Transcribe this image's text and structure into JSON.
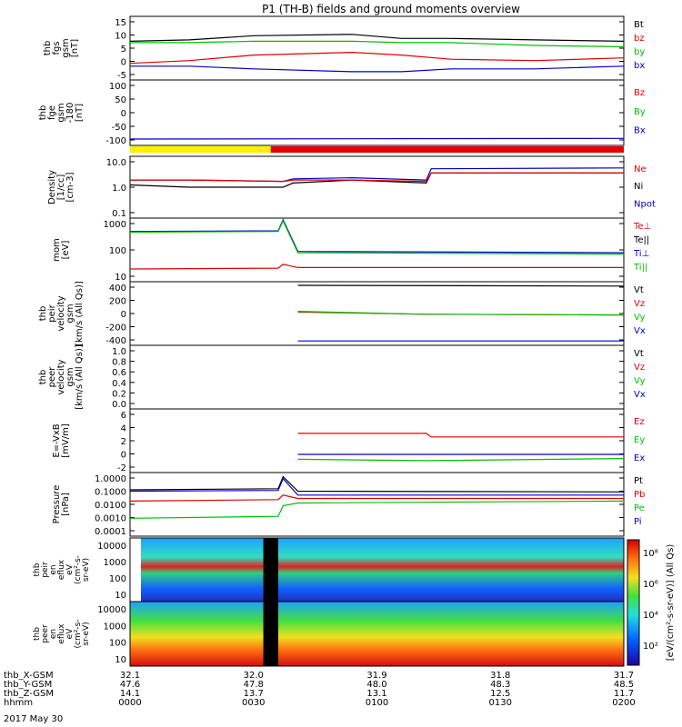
{
  "chart_data": {
    "type": "line",
    "title": "P1 (TH-B) fields and ground moments overview",
    "colors": {
      "black": "#000000",
      "red": "#e00000",
      "green": "#00c000",
      "blue": "#0000c8",
      "yellow": "#ffee00"
    },
    "panels": [
      {
        "ylabel": [
          "thb",
          "fgs",
          "gsm",
          "[nT]"
        ],
        "yticks": [
          "15",
          "10",
          "5",
          "0",
          "-5"
        ],
        "ylim": [
          -7,
          16
        ],
        "legend": [
          {
            "text": "Bt",
            "color": "black"
          },
          {
            "text": "bz",
            "color": "red"
          },
          {
            "text": "by",
            "color": "green"
          },
          {
            "text": "bx",
            "color": "blue"
          }
        ],
        "series": [
          {
            "name": "Bt",
            "color": "black",
            "t": [
              0,
              0.12,
              0.25,
              0.45,
              0.55,
              0.65,
              0.82,
              1
            ],
            "v": [
              7,
              7.5,
              9,
              9.5,
              8,
              8,
              7.5,
              7
            ]
          },
          {
            "name": "bz",
            "color": "red",
            "t": [
              0,
              0.12,
              0.25,
              0.45,
              0.55,
              0.65,
              0.82,
              1
            ],
            "v": [
              -1,
              0,
              2,
              3,
              2,
              0.5,
              0,
              1
            ]
          },
          {
            "name": "by",
            "color": "green",
            "t": [
              0,
              0.12,
              0.25,
              0.45,
              0.55,
              0.65,
              0.82,
              1
            ],
            "v": [
              6.5,
              6.5,
              7,
              7,
              6.5,
              6.5,
              5.5,
              5
            ]
          },
          {
            "name": "bx",
            "color": "blue",
            "t": [
              0,
              0.12,
              0.25,
              0.45,
              0.55,
              0.65,
              0.82,
              1
            ],
            "v": [
              -2,
              -2,
              -3,
              -4,
              -4,
              -3,
              -3,
              -2
            ]
          }
        ]
      },
      {
        "ylabel": [
          "thb",
          "fge",
          "gsm",
          "-180",
          "[nT]"
        ],
        "yticks": [
          "100",
          "50",
          "0",
          "-50",
          "-100"
        ],
        "ylim": [
          -130,
          105
        ],
        "legend": [
          {
            "text": "Bz",
            "color": "red"
          },
          {
            "text": "By",
            "color": "green"
          },
          {
            "text": "Bx",
            "color": "blue"
          }
        ],
        "series": [
          {
            "name": "Bx",
            "color": "blue",
            "t": [
              0,
              1
            ],
            "v": [
              -107,
              -105
            ]
          }
        ]
      },
      {
        "ylabel": [
          "Density",
          "[1/cc]",
          "[cm-3]"
        ],
        "yticks": [
          "10.0",
          "1.0",
          "0.1"
        ],
        "ylim": [
          0.1,
          40
        ],
        "log": true,
        "legend": [
          {
            "text": "Ne",
            "color": "red"
          },
          {
            "text": "Ni",
            "color": "black"
          },
          {
            "text": "Npot",
            "color": "blue"
          }
        ],
        "series": [
          {
            "name": "Ni",
            "color": "black",
            "t": [
              0,
              0.12,
              0.31,
              0.33,
              0.45,
              0.6,
              0.61,
              1
            ],
            "v": [
              2.5,
              2,
              2,
              3,
              4,
              3,
              8,
              8
            ]
          },
          {
            "name": "Npot",
            "color": "blue",
            "t": [
              0,
              0.12,
              0.31,
              0.33,
              0.45,
              0.6,
              0.61,
              1
            ],
            "v": [
              4,
              4,
              3.5,
              4.5,
              5,
              4,
              12,
              13
            ]
          },
          {
            "name": "Ne",
            "color": "red",
            "t": [
              0,
              0.12,
              0.31,
              0.33,
              0.45,
              0.6,
              0.61,
              1
            ],
            "v": [
              4,
              4,
              3.5,
              4,
              4,
              3.5,
              8,
              8
            ]
          }
        ]
      },
      {
        "ylabel": [
          "mom",
          "[eV]"
        ],
        "yticks": [
          "1000",
          "100",
          "10"
        ],
        "ylim": [
          3,
          3000
        ],
        "log": true,
        "legend": [
          {
            "text": "Te⊥",
            "color": "red"
          },
          {
            "text": "Te||",
            "color": "black"
          },
          {
            "text": "Ti⊥",
            "color": "blue"
          },
          {
            "text": "Ti||",
            "color": "green"
          }
        ],
        "series": [
          {
            "name": "Ti",
            "color": "blue",
            "t": [
              0,
              0.3,
              0.31,
              0.34,
              1
            ],
            "v": [
              700,
              750,
              2500,
              80,
              70
            ]
          },
          {
            "name": "Ti||",
            "color": "green",
            "t": [
              0,
              0.3,
              0.31,
              0.34,
              1
            ],
            "v": [
              650,
              700,
              2200,
              70,
              60
            ]
          },
          {
            "name": "Te",
            "color": "red",
            "t": [
              0,
              0.3,
              0.31,
              0.34,
              1
            ],
            "v": [
              12,
              13,
              20,
              14,
              14
            ]
          }
        ]
      },
      {
        "ylabel": [
          "thb",
          "peir",
          "velocity",
          "gsm",
          "[km/s (All Qs)]"
        ],
        "yticks": [
          "400",
          "200",
          "0",
          "-200",
          "-400"
        ],
        "ylim": [
          -440,
          440
        ],
        "legend": [
          {
            "text": "Vt",
            "color": "black"
          },
          {
            "text": "Vz",
            "color": "red"
          },
          {
            "text": "Vy",
            "color": "green"
          },
          {
            "text": "Vx",
            "color": "blue"
          }
        ],
        "series": [
          {
            "name": "Vt",
            "color": "black",
            "t": [
              0.34,
              1
            ],
            "v": [
              390,
              380
            ]
          },
          {
            "name": "Vz",
            "color": "red",
            "t": [
              0.34,
              0.6,
              1
            ],
            "v": [
              20,
              -10,
              -20
            ]
          },
          {
            "name": "Vy",
            "color": "green",
            "t": [
              0.34,
              0.6,
              1
            ],
            "v": [
              30,
              -10,
              -20
            ]
          },
          {
            "name": "Vx",
            "color": "blue",
            "t": [
              0.34,
              1
            ],
            "v": [
              -380,
              -380
            ]
          }
        ]
      },
      {
        "ylabel": [
          "thb",
          "peer",
          "velocity",
          "gsm",
          "[km/s (All Qs)]"
        ],
        "yticks": [
          "1.0",
          "0.8",
          "0.6",
          "0.4",
          "0.2",
          "0.0"
        ],
        "ylim": [
          0,
          1
        ],
        "legend": [
          {
            "text": "Vt",
            "color": "black"
          },
          {
            "text": "Vz",
            "color": "red"
          },
          {
            "text": "Vy",
            "color": "green"
          },
          {
            "text": "Vx",
            "color": "blue"
          }
        ],
        "series": []
      },
      {
        "ylabel": [
          "E=-VxB",
          "[mV/m]"
        ],
        "yticks": [
          "6",
          "4",
          "2",
          "0",
          "-2"
        ],
        "ylim": [
          -2.6,
          6.5
        ],
        "legend": [
          {
            "text": "Ez",
            "color": "red"
          },
          {
            "text": "Ey",
            "color": "green"
          },
          {
            "text": "Ex",
            "color": "blue"
          }
        ],
        "series": [
          {
            "name": "Ez",
            "color": "red",
            "t": [
              0.34,
              0.6,
              0.61,
              1
            ],
            "v": [
              3,
              3,
              2.5,
              2.5
            ]
          },
          {
            "name": "Ex",
            "color": "blue",
            "t": [
              0.34,
              1
            ],
            "v": [
              0,
              0
            ]
          },
          {
            "name": "Ey",
            "color": "green",
            "t": [
              0.34,
              0.6,
              1
            ],
            "v": [
              -0.7,
              -0.9,
              -0.6
            ]
          }
        ]
      },
      {
        "ylabel": [
          "Pressure",
          "[nPa]"
        ],
        "yticks": [
          "1.0000",
          "0.1000",
          "0.0100",
          "0.0010",
          "0.0001"
        ],
        "ylim": [
          0.0001,
          1.5
        ],
        "log": true,
        "legend": [
          {
            "text": "Pt",
            "color": "black"
          },
          {
            "text": "Pb",
            "color": "red"
          },
          {
            "text": "Pe",
            "color": "green"
          },
          {
            "text": "Pi",
            "color": "blue"
          }
        ],
        "series": [
          {
            "name": "Pt",
            "color": "black",
            "t": [
              0,
              0.3,
              0.31,
              0.34,
              1
            ],
            "v": [
              0.11,
              0.13,
              0.8,
              0.09,
              0.08
            ]
          },
          {
            "name": "Pb",
            "color": "red",
            "t": [
              0,
              0.3,
              0.31,
              0.34,
              1
            ],
            "v": [
              0.02,
              0.025,
              0.05,
              0.03,
              0.03
            ]
          },
          {
            "name": "Pi",
            "color": "blue",
            "t": [
              0,
              0.3,
              0.31,
              0.34,
              1
            ],
            "v": [
              0.09,
              0.1,
              0.6,
              0.05,
              0.05
            ]
          },
          {
            "name": "Pe",
            "color": "green",
            "t": [
              0,
              0.3,
              0.31,
              0.34,
              1
            ],
            "v": [
              0.0015,
              0.002,
              0.01,
              0.015,
              0.02
            ]
          }
        ]
      }
    ],
    "spectrograms": [
      {
        "ylabel": [
          "thb",
          "peir",
          "en",
          "eflux",
          "eV",
          "(cm²-s-",
          "sr-eV)"
        ],
        "yticks": [
          "10000",
          "1000",
          "100",
          "10"
        ]
      },
      {
        "ylabel": [
          "thb",
          "peer",
          "en",
          "eflux",
          "eV",
          "(cm²-s-",
          "sr-eV)"
        ],
        "yticks": [
          "10000",
          "1000",
          "100",
          "10"
        ]
      }
    ],
    "colorbar": {
      "ticks": [
        "10⁸",
        "10⁶",
        "10⁴",
        "10²"
      ],
      "label": "[eV/(cm²-s-sr-eV)] (All Qs)"
    },
    "xaxis": {
      "rows": [
        {
          "label": "thb_X-GSM",
          "values": [
            "32.1",
            "32.0",
            "31.9",
            "31.8",
            "31.7"
          ]
        },
        {
          "label": "thb_Y-GSM",
          "values": [
            "47.6",
            "47.8",
            "48.0",
            "48.3",
            "48.5"
          ]
        },
        {
          "label": "thb_Z-GSM",
          "values": [
            "14.1",
            "13.7",
            "13.1",
            "12.5",
            "11.7"
          ]
        },
        {
          "label": "hhmm",
          "values": [
            "0000",
            "0030",
            "0100",
            "0130",
            "0200"
          ]
        }
      ],
      "date": "2017 May 30"
    }
  }
}
